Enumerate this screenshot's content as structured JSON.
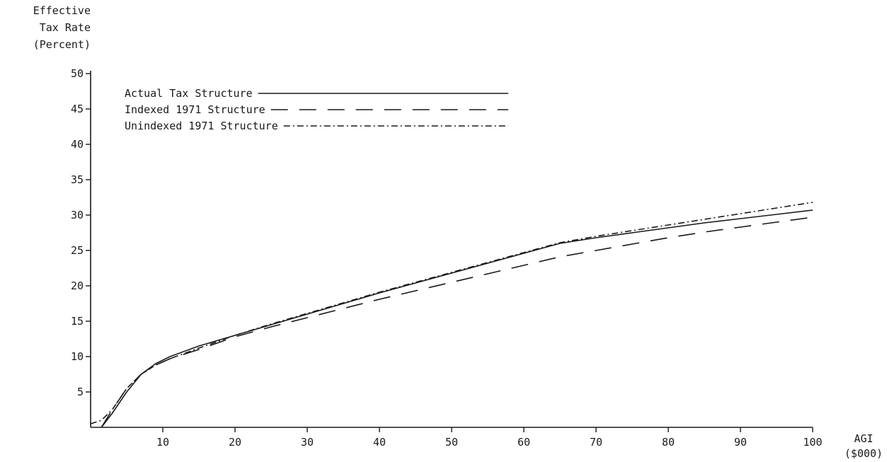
{
  "chart_data": {
    "type": "line",
    "title": "",
    "ylabel": [
      "Effective",
      "Tax Rate",
      "(Percent)"
    ],
    "xlabel": [
      "AGI",
      "($000)"
    ],
    "xlim": [
      0,
      100
    ],
    "ylim": [
      0,
      50
    ],
    "x_ticks": [
      10,
      20,
      30,
      40,
      50,
      60,
      70,
      80,
      90,
      100
    ],
    "x_tick_labels": [
      "10",
      "20",
      "30",
      "40",
      "50",
      "60",
      "70",
      "80",
      "90",
      "100"
    ],
    "y_ticks": [
      5,
      10,
      15,
      20,
      25,
      30,
      35,
      40,
      45,
      50
    ],
    "y_tick_labels": [
      "5",
      "10",
      "15",
      "20",
      "25",
      "30",
      "35",
      "40",
      "45",
      "50"
    ],
    "grid": false,
    "legend_position": "top-left",
    "series": [
      {
        "name": "Actual Tax Structure",
        "style": "solid",
        "x": [
          1.5,
          3,
          5,
          7,
          9,
          11,
          15,
          20,
          25,
          30,
          35,
          40,
          45,
          50,
          55,
          60,
          65,
          70,
          75,
          80,
          85,
          90,
          95,
          100
        ],
        "y": [
          0,
          2,
          5,
          7.5,
          9,
          10,
          11.5,
          13,
          14.5,
          16,
          17.5,
          19,
          20.4,
          21.8,
          23.2,
          24.6,
          26,
          26.8,
          27.5,
          28.2,
          28.9,
          29.5,
          30.1,
          30.7
        ]
      },
      {
        "name": "Indexed 1971 Structure",
        "style": "long-dash",
        "x": [
          1.5,
          3,
          5,
          7,
          9,
          11,
          15,
          20,
          25,
          30,
          35,
          40,
          45,
          50,
          55,
          60,
          65,
          70,
          75,
          80,
          85,
          90,
          95,
          100
        ],
        "y": [
          0,
          2.5,
          5.5,
          7.5,
          8.8,
          9.7,
          11,
          12.8,
          14.2,
          15.5,
          16.8,
          18.1,
          19.3,
          20.5,
          21.7,
          22.9,
          24.1,
          25,
          25.9,
          26.8,
          27.6,
          28.3,
          29,
          29.7
        ]
      },
      {
        "name": "Unindexed 1971 Structure",
        "style": "dash-dot",
        "x": [
          0,
          1.5,
          3,
          5,
          7,
          9,
          11,
          15,
          20,
          25,
          30,
          35,
          40,
          45,
          50,
          55,
          60,
          65,
          70,
          75,
          80,
          85,
          90,
          95,
          100
        ],
        "y": [
          0.5,
          1,
          2.5,
          5.5,
          7.5,
          8.8,
          9.7,
          11.2,
          13,
          14.6,
          16.1,
          17.6,
          19.1,
          20.5,
          21.9,
          23.3,
          24.7,
          26.1,
          27,
          27.8,
          28.6,
          29.4,
          30.2,
          31,
          31.8
        ]
      }
    ]
  }
}
